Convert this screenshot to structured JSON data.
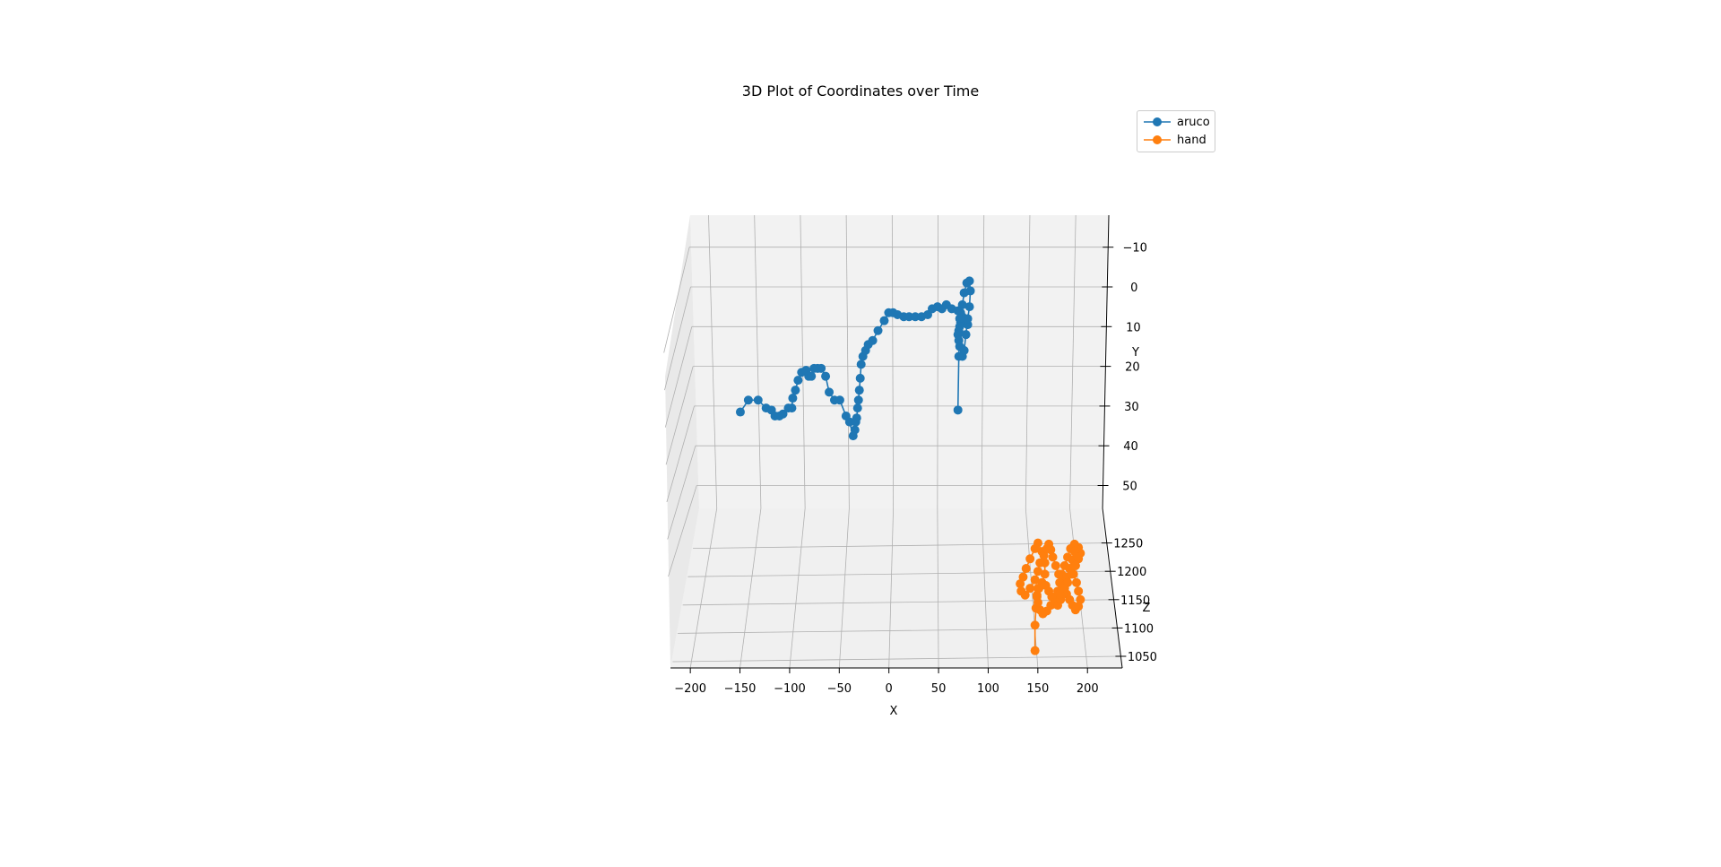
{
  "chart_data": {
    "type": "line",
    "subtype": "3d-line-with-markers",
    "title": "3D Plot of Coordinates over Time",
    "xlabel": "X",
    "ylabel": "Y",
    "zlabel": "Z",
    "xlim": [
      -220,
      235
    ],
    "ylim": [
      -18,
      58
    ],
    "zlim": [
      1035,
      1275
    ],
    "y_axis_inverted": true,
    "grid": true,
    "legend": "top-right",
    "x_ticks": [
      {
        "value": -200,
        "label": "−200"
      },
      {
        "value": -150,
        "label": "−150"
      },
      {
        "value": -100,
        "label": "−100"
      },
      {
        "value": -50,
        "label": "−50"
      },
      {
        "value": 0,
        "label": "0"
      },
      {
        "value": 50,
        "label": "50"
      },
      {
        "value": 100,
        "label": "100"
      },
      {
        "value": 150,
        "label": "150"
      },
      {
        "value": 200,
        "label": "200"
      }
    ],
    "y_ticks": [
      {
        "value": -10,
        "label": "−10"
      },
      {
        "value": 0,
        "label": "0"
      },
      {
        "value": 10,
        "label": "10"
      },
      {
        "value": 20,
        "label": "20"
      },
      {
        "value": 30,
        "label": "30"
      },
      {
        "value": 40,
        "label": "40"
      },
      {
        "value": 50,
        "label": "50"
      }
    ],
    "z_ticks": [
      {
        "value": 1250,
        "label": "1250"
      },
      {
        "value": 1200,
        "label": "1200"
      },
      {
        "value": 1150,
        "label": "1150"
      },
      {
        "value": 1100,
        "label": "1100"
      },
      {
        "value": 1050,
        "label": "1050"
      }
    ],
    "series": [
      {
        "name": "aruco",
        "color": "#1f77b4",
        "x": [
          -172,
          -163,
          -152,
          -143,
          -137,
          -133,
          -128,
          -124,
          -118,
          -114,
          -113,
          -110,
          -107,
          -103,
          -98,
          -95,
          -92,
          -89,
          -85,
          -81,
          -76,
          -72,
          -66,
          -60,
          -53,
          -49,
          -45,
          -43,
          -42,
          -41,
          -40,
          -39,
          -38,
          -37,
          -36,
          -34,
          -31,
          -28,
          -23,
          -17,
          -10,
          -5,
          0,
          5,
          12,
          18,
          25,
          32,
          39,
          44,
          50,
          55,
          60,
          66,
          73,
          78,
          82,
          84,
          80,
          76,
          74,
          73,
          74,
          75,
          78,
          80,
          82,
          84,
          86,
          87,
          86,
          83,
          80,
          78,
          76,
          75,
          75,
          74,
          73
        ],
        "y": [
          31.5,
          28.5,
          28.5,
          30.5,
          31,
          32.5,
          32.5,
          32,
          30.5,
          30.5,
          28,
          26,
          23.5,
          21.5,
          21,
          22.5,
          22.5,
          20.5,
          20.5,
          20.5,
          22.5,
          26.5,
          28.5,
          28.5,
          32.5,
          34,
          37.5,
          36,
          34,
          33,
          30.5,
          28.5,
          26,
          23,
          19.5,
          17.5,
          16,
          14.5,
          13.5,
          11,
          8.5,
          6.5,
          6.5,
          7,
          7.5,
          7.5,
          7.5,
          7.5,
          7,
          5.5,
          5,
          5.5,
          4.5,
          5.5,
          6,
          7.5,
          8.5,
          9.5,
          8.5,
          9,
          11,
          12,
          13.5,
          15,
          17.5,
          16,
          12,
          8,
          5,
          1,
          -1.5,
          -1,
          1.5,
          4.5,
          6.5,
          8,
          10,
          17.5,
          31
        ],
        "z": [
          1150,
          1150,
          1150,
          1150,
          1150,
          1150,
          1150,
          1150,
          1150,
          1150,
          1150,
          1150,
          1150,
          1150,
          1150,
          1150,
          1150,
          1150,
          1150,
          1150,
          1150,
          1150,
          1150,
          1150,
          1150,
          1150,
          1150,
          1150,
          1150,
          1150,
          1150,
          1150,
          1150,
          1150,
          1150,
          1150,
          1150,
          1150,
          1150,
          1150,
          1150,
          1150,
          1150,
          1150,
          1150,
          1150,
          1150,
          1150,
          1150,
          1150,
          1150,
          1150,
          1150,
          1150,
          1150,
          1150,
          1150,
          1150,
          1150,
          1150,
          1150,
          1150,
          1150,
          1150,
          1150,
          1150,
          1150,
          1150,
          1150,
          1150,
          1150,
          1150,
          1150,
          1150,
          1150,
          1150,
          1150,
          1150,
          1150
        ]
      },
      {
        "name": "hand",
        "color": "#ff7f0e",
        "x": [
          155,
          155,
          156,
          157,
          158,
          162,
          165,
          165,
          162,
          158,
          155,
          150,
          146,
          143,
          140,
          141,
          145,
          150,
          155,
          158,
          160,
          164,
          167,
          169,
          171,
          173,
          176,
          179,
          182,
          185,
          187,
          190,
          193,
          196,
          199,
          201,
          199,
          197,
          194,
          196,
          199,
          201,
          199,
          195,
          191,
          188,
          185,
          182,
          180,
          178,
          175,
          171,
          167,
          163,
          160,
          158,
          157,
          159,
          162,
          166,
          169,
          172,
          175,
          178,
          181,
          183,
          185,
          187,
          190,
          193,
          195,
          198,
          196,
          192,
          188,
          184,
          180
        ],
        "y": [
          25,
          25,
          25,
          25,
          25,
          25,
          25,
          25,
          25,
          25,
          25,
          25,
          25,
          25,
          25,
          25,
          25,
          25,
          25,
          25,
          25,
          25,
          25,
          25,
          25,
          25,
          25,
          25,
          25,
          25,
          25,
          25,
          25,
          25,
          25,
          25,
          25,
          25,
          25,
          25,
          25,
          25,
          25,
          25,
          25,
          25,
          25,
          25,
          25,
          25,
          25,
          25,
          25,
          25,
          25,
          25,
          25,
          25,
          25,
          25,
          25,
          25,
          25,
          25,
          25,
          25,
          25,
          25,
          25,
          25,
          25,
          25,
          25,
          25,
          25,
          25,
          25
        ],
        "z": [
          1060,
          1105,
          1135,
          1155,
          1170,
          1180,
          1195,
          1215,
          1235,
          1250,
          1240,
          1222,
          1205,
          1190,
          1178,
          1165,
          1158,
          1170,
          1185,
          1200,
          1215,
          1228,
          1240,
          1248,
          1238,
          1225,
          1210,
          1195,
          1180,
          1170,
          1160,
          1150,
          1140,
          1132,
          1138,
          1150,
          1165,
          1180,
          1195,
          1210,
          1222,
          1232,
          1242,
          1248,
          1240,
          1225,
          1210,
          1195,
          1180,
          1165,
          1152,
          1140,
          1130,
          1125,
          1132,
          1145,
          1158,
          1170,
          1180,
          1175,
          1165,
          1155,
          1145,
          1140,
          1150,
          1162,
          1175,
          1190,
          1205,
          1220,
          1235,
          1225,
          1210,
          1195,
          1180,
          1170,
          1160
        ]
      }
    ]
  }
}
